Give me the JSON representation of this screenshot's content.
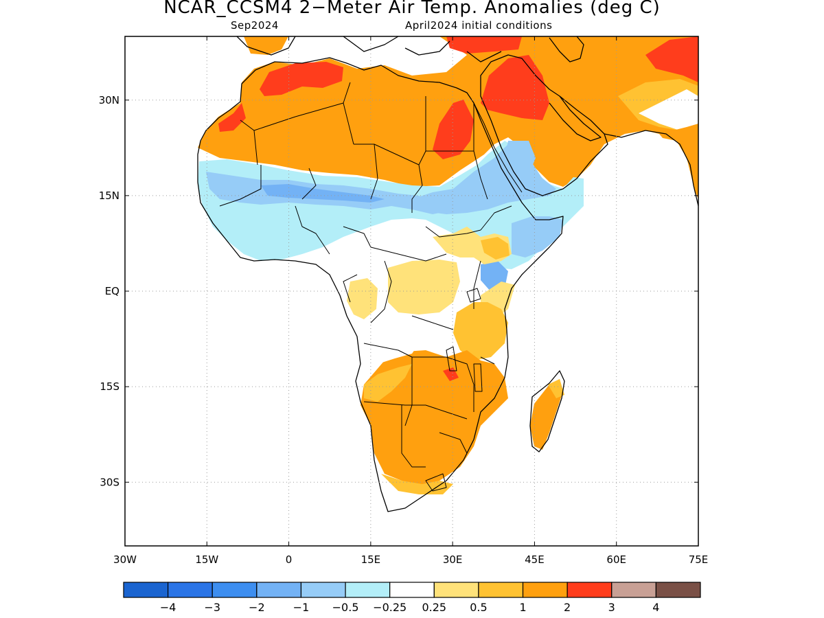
{
  "title": "NCAR_CCSM4 2−Meter Air Temp. Anomalies (deg C)",
  "subtitle_left": "Sep2024",
  "subtitle_right": "April2024 initial conditions",
  "map": {
    "lon_range": [
      -30,
      75
    ],
    "lat_range": [
      -40,
      40
    ],
    "x_ticks": [
      {
        "value": -30,
        "label": "30W"
      },
      {
        "value": -15,
        "label": "15W"
      },
      {
        "value": 0,
        "label": "0"
      },
      {
        "value": 15,
        "label": "15E"
      },
      {
        "value": 30,
        "label": "30E"
      },
      {
        "value": 45,
        "label": "45E"
      },
      {
        "value": 60,
        "label": "60E"
      },
      {
        "value": 75,
        "label": "75E"
      }
    ],
    "y_ticks": [
      {
        "value": 30,
        "label": "30N"
      },
      {
        "value": 15,
        "label": "15N"
      },
      {
        "value": 0,
        "label": "EQ"
      },
      {
        "value": -15,
        "label": "15S"
      },
      {
        "value": -30,
        "label": "30S"
      }
    ],
    "grid": true
  },
  "colorbar": {
    "colors": [
      "#1a64d0",
      "#2a74e6",
      "#3d8ef0",
      "#73b2f5",
      "#96ccf7",
      "#b3eef8",
      "#ffffff",
      "#ffe27a",
      "#ffc232",
      "#ffa00f",
      "#ff3d1c",
      "#c8a095",
      "#7a5046"
    ],
    "labels": [
      "−4",
      "−3",
      "−2",
      "−1",
      "−0.5",
      "−0.25",
      "0.25",
      "0.5",
      "1",
      "2",
      "3",
      "4"
    ]
  }
}
